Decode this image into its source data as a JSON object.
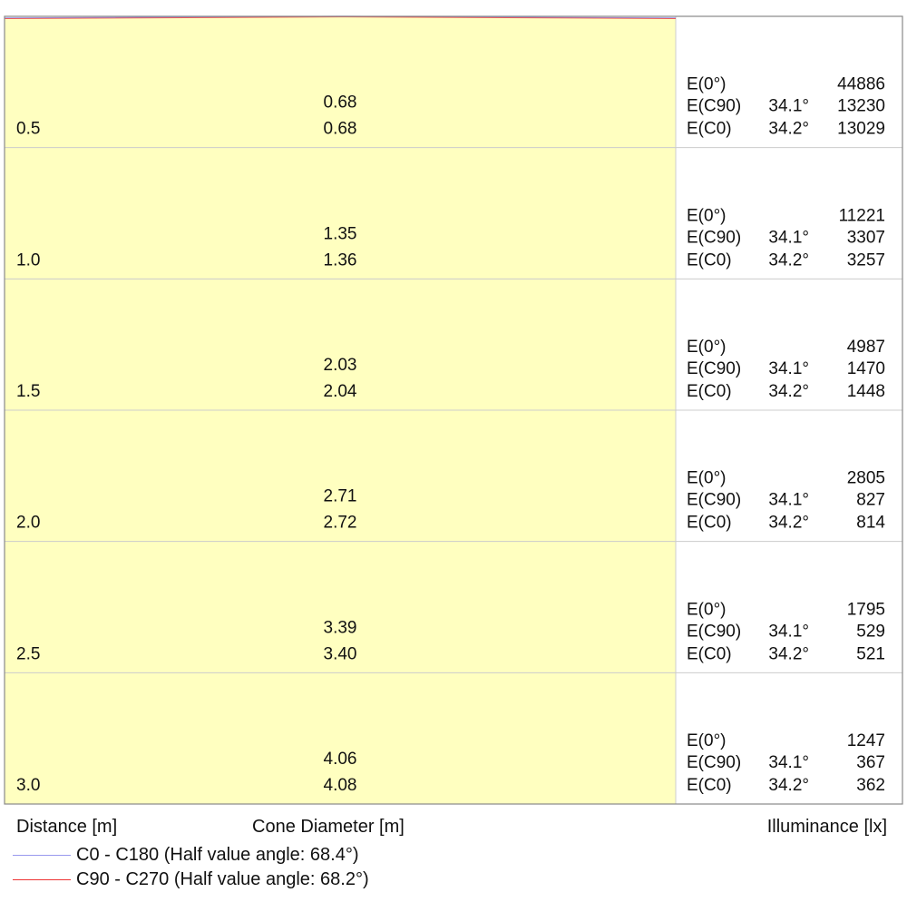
{
  "chart_data": {
    "type": "table",
    "rows": [
      {
        "distance": "0.5",
        "diameter_c0": "0.68",
        "diameter_c90": "0.68",
        "e0": "44886",
        "ec90_angle": "34.1°",
        "ec90": "13230",
        "ec0_angle": "34.2°",
        "ec0": "13029"
      },
      {
        "distance": "1.0",
        "diameter_c0": "1.35",
        "diameter_c90": "1.36",
        "e0": "11221",
        "ec90_angle": "34.1°",
        "ec90": "3307",
        "ec0_angle": "34.2°",
        "ec0": "3257"
      },
      {
        "distance": "1.5",
        "diameter_c0": "2.03",
        "diameter_c90": "2.04",
        "e0": "4987",
        "ec90_angle": "34.1°",
        "ec90": "1470",
        "ec0_angle": "34.2°",
        "ec0": "1448"
      },
      {
        "distance": "2.0",
        "diameter_c0": "2.71",
        "diameter_c90": "2.72",
        "e0": "2805",
        "ec90_angle": "34.1°",
        "ec90": "827",
        "ec0_angle": "34.2°",
        "ec0": "814"
      },
      {
        "distance": "2.5",
        "diameter_c0": "3.39",
        "diameter_c90": "3.40",
        "e0": "1795",
        "ec90_angle": "34.1°",
        "ec90": "529",
        "ec0_angle": "34.2°",
        "ec0": "521"
      },
      {
        "distance": "3.0",
        "diameter_c0": "4.06",
        "diameter_c90": "4.08",
        "e0": "1247",
        "ec90_angle": "34.1°",
        "ec90": "367",
        "ec0_angle": "34.2°",
        "ec0": "362"
      }
    ],
    "row_labels": {
      "e0": "E(0°)",
      "ec90": "E(C90)",
      "ec0": "E(C0)"
    },
    "xlabel_distance": "Distance [m]",
    "xlabel_diameter": "Cone Diameter [m]",
    "xlabel_illuminance": "Illuminance [lx]",
    "series": [
      {
        "name": "C0 - C180 (Half value angle: 68.4°)",
        "color": "#9999ee",
        "half_angle": 68.4
      },
      {
        "name": "C90 - C270 (Half value angle: 68.2°)",
        "color": "#ee3333",
        "half_angle": 68.2
      }
    ],
    "fill_color": "#ffffc0",
    "grid_color": "#cccccc"
  }
}
